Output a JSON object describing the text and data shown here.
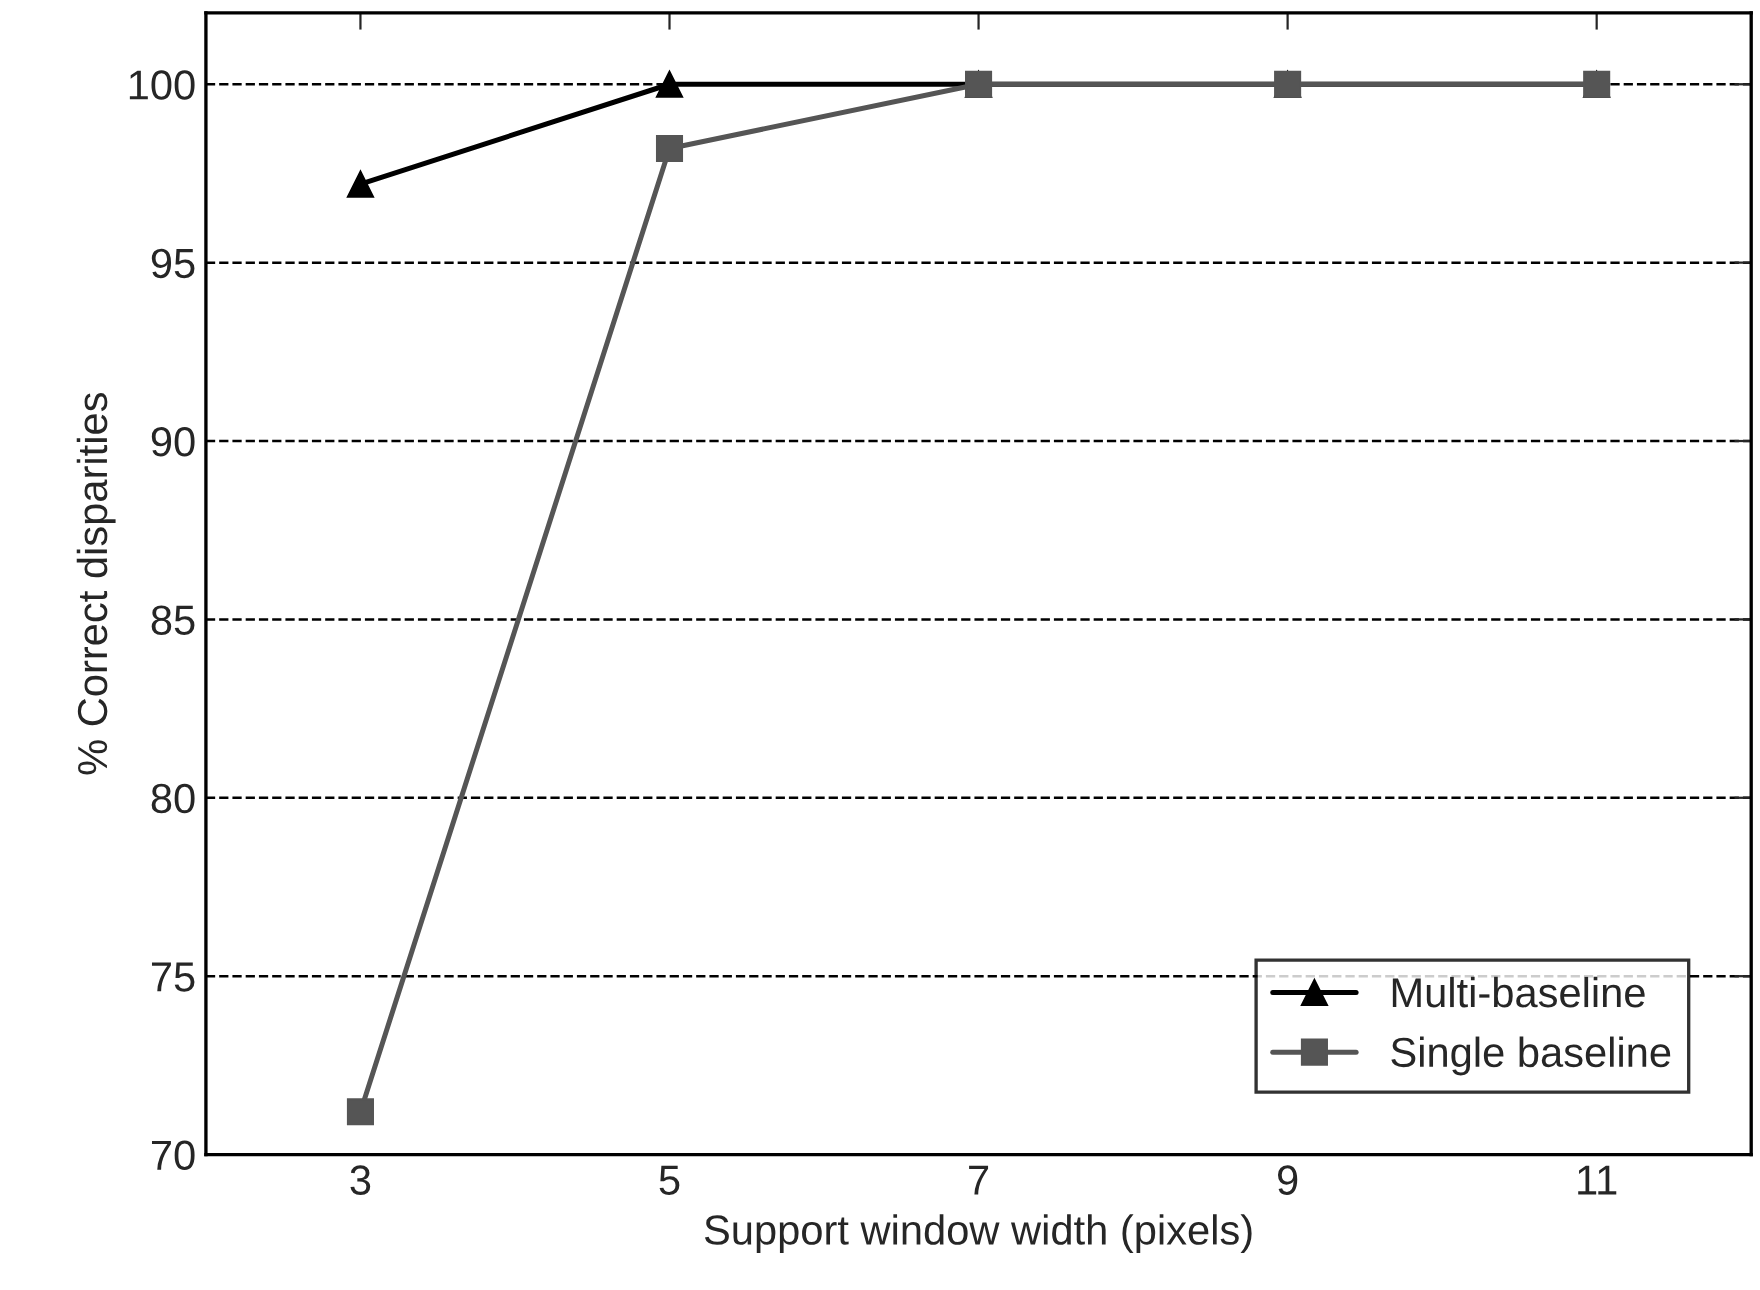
{
  "chart_data": {
    "type": "line",
    "xlabel": "Support window width (pixels)",
    "ylabel": "% Correct disparities",
    "x": [
      3,
      5,
      7,
      9,
      11
    ],
    "series": [
      {
        "name": "Multi-baseline",
        "color": "#000000",
        "marker": "triangle",
        "values": [
          97.2,
          100,
          100,
          100,
          100
        ]
      },
      {
        "name": "Single baseline",
        "color": "#555555",
        "marker": "square",
        "values": [
          71.2,
          98.2,
          100,
          100,
          100
        ]
      }
    ],
    "xlim": [
      2,
      12
    ],
    "xticks": [
      3,
      5,
      7,
      9,
      11
    ],
    "ylim": [
      70,
      102
    ],
    "yticks": [
      70,
      75,
      80,
      85,
      90,
      95,
      100
    ],
    "grid": "y",
    "line_style": "solid",
    "legend": "bottom right"
  }
}
